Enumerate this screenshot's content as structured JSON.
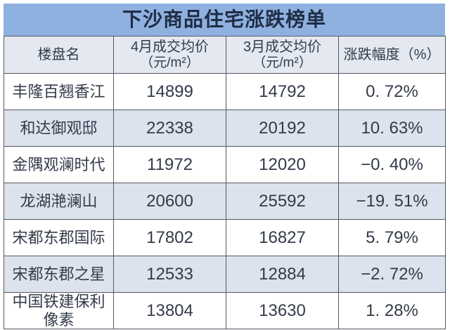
{
  "title": "下沙商品住宅涨跌榜单",
  "table": {
    "headers": {
      "name": "楼盘名",
      "april_line1": "4月成交均价",
      "april_line2": "（元/m²）",
      "march_line1": "3月成交均价",
      "march_line2": "（元/m²）",
      "change": "涨跌幅度（%）"
    },
    "rows": [
      {
        "name": "丰隆百翘香江",
        "april": "14899",
        "march": "14792",
        "change": "0. 72%"
      },
      {
        "name": "和达御观邸",
        "april": "22338",
        "march": "20192",
        "change": "10. 63%"
      },
      {
        "name": "金隅观澜时代",
        "april": "11972",
        "march": "12020",
        "change": "−0. 40%"
      },
      {
        "name": "龙湖滟澜山",
        "april": "20600",
        "march": "25592",
        "change": "−19. 51%"
      },
      {
        "name": "宋都东郡国际",
        "april": "17802",
        "march": "16827",
        "change": "5. 79%"
      },
      {
        "name": "宋都东郡之星",
        "april": "12533",
        "march": "12884",
        "change": "−2. 72%"
      },
      {
        "name": "中国铁建保利像素",
        "april": "13804",
        "march": "13630",
        "change": "1. 28%"
      }
    ]
  },
  "chart_data": {
    "type": "table",
    "title": "下沙商品住宅涨跌榜单",
    "columns": [
      "楼盘名",
      "4月成交均价（元/m²）",
      "3月成交均价（元/m²）",
      "涨跌幅度（%）"
    ],
    "rows": [
      [
        "丰隆百翘香江",
        14899,
        14792,
        0.72
      ],
      [
        "和达御观邸",
        22338,
        20192,
        10.63
      ],
      [
        "金隅观澜时代",
        11972,
        12020,
        -0.4
      ],
      [
        "龙湖滟澜山",
        20600,
        25592,
        -19.51
      ],
      [
        "宋都东郡国际",
        17802,
        16827,
        5.79
      ],
      [
        "宋都东郡之星",
        12533,
        12884,
        -2.72
      ],
      [
        "中国铁建保利像素",
        13804,
        13630,
        1.28
      ]
    ]
  },
  "colors": {
    "banner_bg": "#8fb1e0",
    "banner_text": "#1f2d45",
    "header_bg": "#e4e9f1",
    "zebra_bg": "#dce3ee",
    "row_bg": "#ffffff",
    "grid": "#54585e",
    "body_text": "#333b49"
  }
}
